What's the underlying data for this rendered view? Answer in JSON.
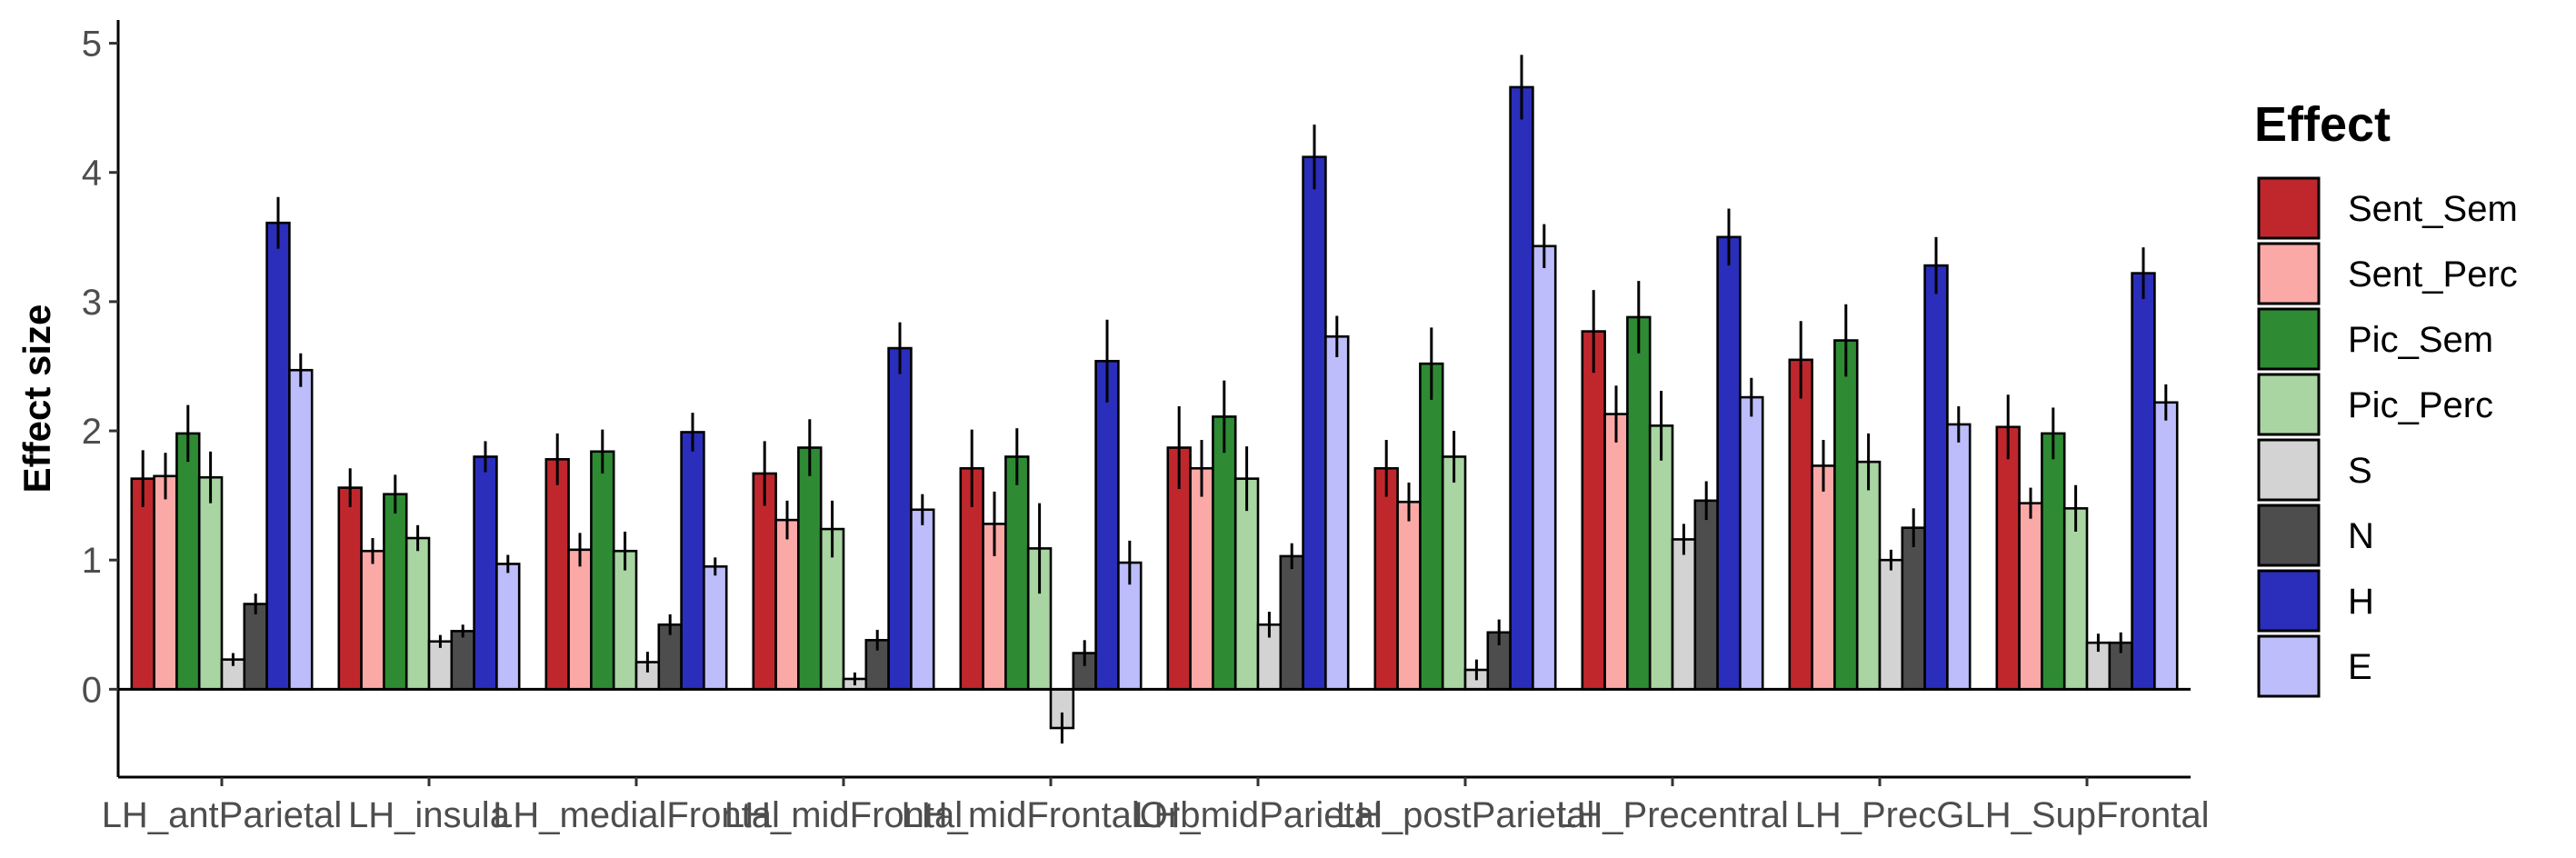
{
  "chart_data": {
    "type": "bar",
    "ylabel": "Effect size",
    "xlabel": "",
    "ylim": [
      -0.68,
      5.18
    ],
    "yticks": [
      0,
      1,
      2,
      3,
      4,
      5
    ],
    "grid": false,
    "legend": {
      "title": "Effect",
      "position": "right"
    },
    "categories": [
      "LH_antParietal",
      "LH_insula",
      "LH_medialFrontal",
      "LH_midFrontal",
      "LH_midFrontalOrb",
      "LH_midParietal",
      "LH_postParietal",
      "LH_Precentral",
      "LH_PrecG",
      "LH_SupFrontal"
    ],
    "series": [
      {
        "name": "Sent_Sem",
        "color": "#C0272D",
        "values": [
          1.63,
          1.56,
          1.78,
          1.67,
          1.71,
          1.87,
          1.71,
          2.77,
          2.55,
          2.03
        ],
        "errors": [
          0.22,
          0.15,
          0.2,
          0.25,
          0.3,
          0.32,
          0.22,
          0.32,
          0.3,
          0.25
        ]
      },
      {
        "name": "Sent_Perc",
        "color": "#FBA9A7",
        "values": [
          1.65,
          1.07,
          1.08,
          1.31,
          1.28,
          1.71,
          1.45,
          2.13,
          1.73,
          1.44
        ],
        "errors": [
          0.18,
          0.1,
          0.13,
          0.15,
          0.25,
          0.22,
          0.15,
          0.22,
          0.2,
          0.12
        ]
      },
      {
        "name": "Pic_Sem",
        "color": "#2E8B34",
        "values": [
          1.98,
          1.51,
          1.84,
          1.87,
          1.8,
          2.11,
          2.52,
          2.88,
          2.7,
          1.98
        ],
        "errors": [
          0.22,
          0.15,
          0.17,
          0.22,
          0.22,
          0.28,
          0.28,
          0.28,
          0.28,
          0.2
        ]
      },
      {
        "name": "Pic_Perc",
        "color": "#A8D5A2",
        "values": [
          1.64,
          1.17,
          1.07,
          1.24,
          1.09,
          1.63,
          1.8,
          2.04,
          1.76,
          1.4
        ],
        "errors": [
          0.2,
          0.1,
          0.15,
          0.22,
          0.35,
          0.25,
          0.2,
          0.27,
          0.22,
          0.18
        ]
      },
      {
        "name": "S",
        "color": "#D3D3D3",
        "values": [
          0.23,
          0.37,
          0.21,
          0.08,
          -0.3,
          0.5,
          0.15,
          1.16,
          1.0,
          0.36
        ],
        "errors": [
          0.05,
          0.05,
          0.08,
          0.05,
          0.12,
          0.1,
          0.08,
          0.12,
          0.08,
          0.07
        ]
      },
      {
        "name": "N",
        "color": "#4D4D4D",
        "values": [
          0.66,
          0.45,
          0.5,
          0.38,
          0.28,
          1.03,
          0.44,
          1.46,
          1.25,
          0.36
        ],
        "errors": [
          0.08,
          0.05,
          0.08,
          0.08,
          0.1,
          0.1,
          0.1,
          0.15,
          0.15,
          0.08
        ]
      },
      {
        "name": "H",
        "color": "#2A2EBB",
        "values": [
          3.61,
          1.8,
          1.99,
          2.64,
          2.54,
          4.12,
          4.66,
          3.5,
          3.28,
          3.22
        ],
        "errors": [
          0.2,
          0.12,
          0.15,
          0.2,
          0.32,
          0.25,
          0.25,
          0.22,
          0.22,
          0.2
        ]
      },
      {
        "name": "E",
        "color": "#BCBDFA",
        "values": [
          2.47,
          0.97,
          0.95,
          1.39,
          0.98,
          2.73,
          3.43,
          2.26,
          2.05,
          2.22
        ],
        "errors": [
          0.13,
          0.07,
          0.07,
          0.12,
          0.17,
          0.16,
          0.17,
          0.15,
          0.14,
          0.14
        ]
      }
    ]
  }
}
